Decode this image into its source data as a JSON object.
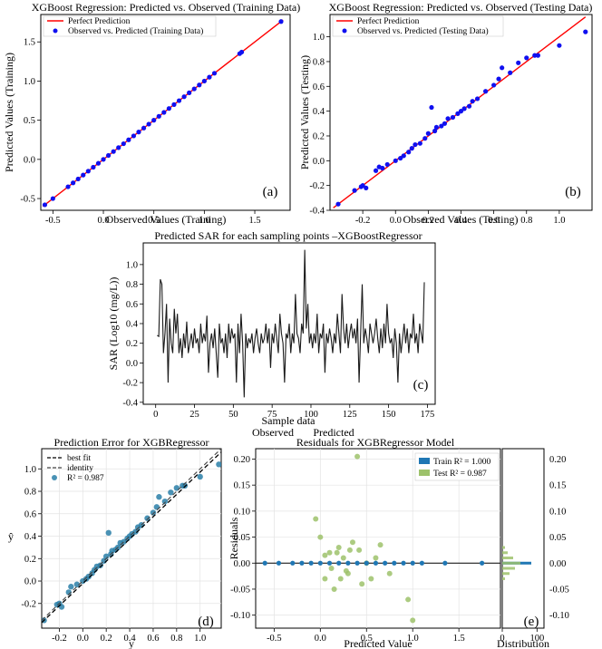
{
  "chart_data": [
    {
      "panel": "(a)",
      "type": "scatter",
      "title": "XGBoost Regression: Predicted vs. Observed (Training Data)",
      "xlabel": "Observed Values (Training)",
      "ylabel": "Predicted Values (Training)",
      "xlim": [
        -0.62,
        1.85
      ],
      "ylim": [
        -0.65,
        1.85
      ],
      "xticks": [
        "-0.5",
        "0.0",
        "0.5",
        "1.0",
        "1.5"
      ],
      "xtick_values": [
        -0.5,
        0.0,
        0.5,
        1.0,
        1.5
      ],
      "yticks": [
        "-0.5",
        "0.0",
        "0.5",
        "1.0",
        "1.5"
      ],
      "ytick_values": [
        -0.5,
        0.0,
        0.5,
        1.0,
        1.5
      ],
      "legend": [
        "Perfect Prediction",
        "Observed vs. Predicted (Training Data)"
      ],
      "legend_position": "upper-left",
      "colors": {
        "line": "#ff0000",
        "points": "#1010f0"
      },
      "reference_line": [
        [
          -0.6,
          -0.6
        ],
        [
          1.78,
          1.78
        ]
      ],
      "points": [
        [
          -0.58,
          -0.58
        ],
        [
          -0.5,
          -0.5
        ],
        [
          -0.35,
          -0.35
        ],
        [
          -0.3,
          -0.3
        ],
        [
          -0.25,
          -0.25
        ],
        [
          -0.2,
          -0.2
        ],
        [
          -0.15,
          -0.15
        ],
        [
          -0.1,
          -0.1
        ],
        [
          -0.05,
          -0.05
        ],
        [
          0.0,
          0.0
        ],
        [
          0.05,
          0.05
        ],
        [
          0.1,
          0.1
        ],
        [
          0.15,
          0.15
        ],
        [
          0.2,
          0.2
        ],
        [
          0.25,
          0.25
        ],
        [
          0.3,
          0.3
        ],
        [
          0.35,
          0.35
        ],
        [
          0.4,
          0.4
        ],
        [
          0.45,
          0.45
        ],
        [
          0.5,
          0.5
        ],
        [
          0.55,
          0.55
        ],
        [
          0.6,
          0.6
        ],
        [
          0.65,
          0.65
        ],
        [
          0.7,
          0.7
        ],
        [
          0.75,
          0.75
        ],
        [
          0.8,
          0.8
        ],
        [
          0.85,
          0.85
        ],
        [
          0.9,
          0.9
        ],
        [
          0.95,
          0.95
        ],
        [
          1.0,
          1.0
        ],
        [
          1.05,
          1.05
        ],
        [
          1.1,
          1.1
        ],
        [
          1.35,
          1.35
        ],
        [
          1.37,
          1.37
        ],
        [
          1.76,
          1.76
        ]
      ]
    },
    {
      "panel": "(b)",
      "type": "scatter",
      "title": "XGBoost Regression: Predicted vs. Observed (Testing Data)",
      "xlabel": "Observed Values (Testing)",
      "ylabel": "Predicted Values (Testing)",
      "xlim": [
        -0.4,
        1.2
      ],
      "ylim": [
        -0.4,
        1.18
      ],
      "xticks": [
        "-0.2",
        "0.0",
        "0.2",
        "0.4",
        "0.6",
        "0.8",
        "1.0"
      ],
      "xtick_values": [
        -0.2,
        0.0,
        0.2,
        0.4,
        0.6,
        0.8,
        1.0
      ],
      "extra_xticks": [
        "0.4",
        "0.2",
        "0.0",
        "0.2",
        "0.4",
        "0.6",
        "0.8",
        "1.0",
        "1.2"
      ],
      "yticks": [
        "-0.4",
        "-0.2",
        "0.0",
        "0.2",
        "0.4",
        "0.6",
        "0.8",
        "1.0"
      ],
      "ytick_values": [
        -0.4,
        -0.2,
        0.0,
        0.2,
        0.4,
        0.6,
        0.8,
        1.0
      ],
      "legend": [
        "Perfect Prediction",
        "Observed vs. Predicted (Testing Data)"
      ],
      "legend_position": "upper-left",
      "colors": {
        "line": "#ff0000",
        "points": "#1010f0"
      },
      "reference_line": [
        [
          -0.38,
          -0.38
        ],
        [
          1.16,
          1.16
        ]
      ],
      "points": [
        [
          -0.35,
          -0.35
        ],
        [
          -0.25,
          -0.24
        ],
        [
          -0.21,
          -0.21
        ],
        [
          -0.2,
          -0.2
        ],
        [
          -0.18,
          -0.22
        ],
        [
          -0.12,
          -0.08
        ],
        [
          -0.1,
          -0.05
        ],
        [
          -0.08,
          -0.06
        ],
        [
          -0.05,
          -0.03
        ],
        [
          0.0,
          0.0
        ],
        [
          0.03,
          0.02
        ],
        [
          0.05,
          0.04
        ],
        [
          0.08,
          0.07
        ],
        [
          0.1,
          0.1
        ],
        [
          0.12,
          0.13
        ],
        [
          0.15,
          0.14
        ],
        [
          0.18,
          0.18
        ],
        [
          0.2,
          0.22
        ],
        [
          0.22,
          0.43
        ],
        [
          0.24,
          0.24
        ],
        [
          0.25,
          0.27
        ],
        [
          0.28,
          0.28
        ],
        [
          0.3,
          0.3
        ],
        [
          0.32,
          0.34
        ],
        [
          0.35,
          0.35
        ],
        [
          0.38,
          0.38
        ],
        [
          0.4,
          0.4
        ],
        [
          0.42,
          0.42
        ],
        [
          0.45,
          0.44
        ],
        [
          0.47,
          0.48
        ],
        [
          0.5,
          0.5
        ],
        [
          0.55,
          0.56
        ],
        [
          0.6,
          0.61
        ],
        [
          0.63,
          0.66
        ],
        [
          0.65,
          0.75
        ],
        [
          0.7,
          0.71
        ],
        [
          0.75,
          0.79
        ],
        [
          0.8,
          0.83
        ],
        [
          0.85,
          0.85
        ],
        [
          0.87,
          0.85
        ],
        [
          1.0,
          0.93
        ],
        [
          1.16,
          1.04
        ]
      ]
    },
    {
      "panel": "(c)",
      "type": "line",
      "title": "Predicted SAR for each sampling points –XGBoostRegressor",
      "xlabel": "Sample data",
      "ylabel": "SAR (Log10 (mg/L))",
      "xlim": [
        -8,
        180
      ],
      "ylim": [
        -0.42,
        1.22
      ],
      "xticks": [
        "0",
        "25",
        "50",
        "75",
        "100",
        "125",
        "150",
        "175"
      ],
      "xtick_values": [
        0,
        25,
        50,
        75,
        100,
        125,
        150,
        175
      ],
      "yticks": [
        "-0.4",
        "-0.2",
        "0.0",
        "0.2",
        "0.4",
        "0.6",
        "0.8",
        "1.0"
      ],
      "ytick_values": [
        -0.4,
        -0.2,
        0.0,
        0.2,
        0.4,
        0.6,
        0.8,
        1.0
      ],
      "colors": {
        "line": "#1a1a1a"
      },
      "values": [
        0.28,
        0.27,
        0.85,
        0.8,
        0.1,
        0.3,
        0.6,
        -0.2,
        0.45,
        0.2,
        0.1,
        0.55,
        0.3,
        0.5,
        0.1,
        0.25,
        0.05,
        0.3,
        0.15,
        0.42,
        0.1,
        0.2,
        0.3,
        0.15,
        0.35,
        0.2,
        0.25,
        0.1,
        0.4,
        0.2,
        0.3,
        0.22,
        0.48,
        -0.1,
        0.2,
        0.3,
        0.15,
        0.35,
        0.1,
        -0.15,
        0.4,
        0.2,
        0.25,
        0.1,
        0.3,
        0.05,
        0.4,
        0.2,
        0.35,
        0.25,
        0.3,
        -0.2,
        0.4,
        0.1,
        0.5,
        0.2,
        -0.35,
        0.3,
        0.15,
        0.25,
        0.2,
        0.3,
        0.1,
        0.25,
        0.35,
        0.2,
        0.1,
        0.3,
        0.2,
        0.25,
        0.4,
        0.2,
        0.35,
        -0.05,
        0.3,
        0.2,
        0.4,
        0.25,
        0.1,
        0.5,
        0.3,
        0.2,
        -0.2,
        0.3,
        0.25,
        0.4,
        0.1,
        0.3,
        0.2,
        0.7,
        0.3,
        0.25,
        0.1,
        0.4,
        0.3,
        1.15,
        0.35,
        0.6,
        0.2,
        0.3,
        0.15,
        0.3,
        0.2,
        0.5,
        0.1,
        0.3,
        0.25,
        0.4,
        -0.1,
        0.3,
        0.2,
        0.35,
        0.25,
        0.1,
        0.3,
        0.2,
        0.5,
        0.3,
        0.1,
        0.7,
        0.35,
        0.2,
        0.4,
        0.15,
        0.3,
        0.4,
        0.25,
        0.35,
        0.2,
        0.45,
        -0.2,
        0.3,
        0.8,
        0.2,
        0.35,
        0.25,
        0.1,
        0.4,
        0.3,
        0.2,
        0.3,
        0.45,
        0.25,
        0.1,
        0.35,
        0.15,
        0.4,
        0.2,
        0.6,
        0.3,
        0.2,
        0.25,
        0.05,
        0.35,
        0.2,
        -0.2,
        0.3,
        0.1,
        0.25,
        0.4,
        0.2,
        0.35,
        0.1,
        0.3,
        0.25,
        0.5,
        0.2,
        0.3,
        0.1,
        0.4,
        0.3,
        0.2,
        0.82
      ]
    },
    {
      "panel": "(d)",
      "type": "scatter",
      "title": "Prediction Error for XGBRegressor",
      "xlabel": "y",
      "ylabel": "ŷ",
      "xlim": [
        -0.35,
        1.18
      ],
      "ylim": [
        -0.42,
        1.18
      ],
      "xticks": [
        "-0.2",
        "0.0",
        "0.2",
        "0.4",
        "0.6",
        "0.8",
        "1.0"
      ],
      "xtick_values": [
        -0.2,
        0.0,
        0.2,
        0.4,
        0.6,
        0.8,
        1.0
      ],
      "yticks": [
        "-0.2",
        "0.0",
        "0.2",
        "0.4",
        "0.6",
        "0.8",
        "1.0"
      ],
      "ytick_values": [
        -0.2,
        0.0,
        0.2,
        0.4,
        0.6,
        0.8,
        1.0
      ],
      "legend": [
        "best fit",
        "identity",
        "R² = 0.987"
      ],
      "legend_position": "upper-left",
      "colors": {
        "points": "#2a7fa8",
        "best_fit": "#000000",
        "identity": "#444444"
      },
      "best_fit": [
        [
          -0.35,
          -0.37
        ],
        [
          1.18,
          1.15
        ]
      ],
      "identity": [
        [
          -0.35,
          -0.35
        ],
        [
          1.18,
          1.18
        ]
      ],
      "points": [
        [
          -0.33,
          -0.35
        ],
        [
          -0.22,
          -0.21
        ],
        [
          -0.2,
          -0.2
        ],
        [
          -0.18,
          -0.23
        ],
        [
          -0.12,
          -0.1
        ],
        [
          -0.1,
          -0.05
        ],
        [
          -0.05,
          -0.03
        ],
        [
          0.0,
          0.0
        ],
        [
          0.03,
          0.02
        ],
        [
          0.05,
          0.04
        ],
        [
          0.08,
          0.07
        ],
        [
          0.1,
          0.1
        ],
        [
          0.12,
          0.13
        ],
        [
          0.15,
          0.14
        ],
        [
          0.18,
          0.18
        ],
        [
          0.2,
          0.22
        ],
        [
          0.22,
          0.43
        ],
        [
          0.24,
          0.24
        ],
        [
          0.25,
          0.27
        ],
        [
          0.28,
          0.28
        ],
        [
          0.3,
          0.3
        ],
        [
          0.32,
          0.34
        ],
        [
          0.35,
          0.35
        ],
        [
          0.38,
          0.38
        ],
        [
          0.4,
          0.4
        ],
        [
          0.42,
          0.42
        ],
        [
          0.45,
          0.44
        ],
        [
          0.47,
          0.48
        ],
        [
          0.5,
          0.5
        ],
        [
          0.55,
          0.56
        ],
        [
          0.6,
          0.61
        ],
        [
          0.63,
          0.66
        ],
        [
          0.65,
          0.75
        ],
        [
          0.7,
          0.71
        ],
        [
          0.75,
          0.79
        ],
        [
          0.8,
          0.83
        ],
        [
          0.85,
          0.85
        ],
        [
          0.87,
          0.85
        ],
        [
          1.0,
          0.93
        ],
        [
          1.16,
          1.04
        ]
      ]
    },
    {
      "panel": "(e)",
      "type": "scatter",
      "title": "Residuals for XGBRegressor Model",
      "header_labels": [
        "Observed",
        "Predicted"
      ],
      "xlabel": "Predicted Value",
      "ylabel": "Residuals",
      "xlim": [
        -0.7,
        1.95
      ],
      "ylim": [
        -0.125,
        0.22
      ],
      "xticks": [
        "-0.5",
        "0.0",
        "0.5",
        "1.0",
        "1.5"
      ],
      "xtick_values": [
        -0.5,
        0.0,
        0.5,
        1.0,
        1.5
      ],
      "yticks": [
        "-0.10",
        "-0.05",
        "0.00",
        "0.05",
        "0.10",
        "0.15",
        "0.20"
      ],
      "ytick_values": [
        -0.1,
        -0.05,
        0.0,
        0.05,
        0.1,
        0.15,
        0.2
      ],
      "legend": [
        "Train R² = 1.000",
        "Test R² = 0.987"
      ],
      "legend_position": "upper-right",
      "colors": {
        "train": "#1f77b4",
        "test": "#9dc26b",
        "zero_line": "#000000"
      },
      "train_points": [
        [
          -0.6,
          0.0
        ],
        [
          -0.45,
          0.0
        ],
        [
          -0.3,
          0.0
        ],
        [
          -0.2,
          0.0
        ],
        [
          -0.1,
          0.0
        ],
        [
          0.0,
          0.0
        ],
        [
          0.1,
          0.0
        ],
        [
          0.2,
          0.0
        ],
        [
          0.3,
          0.0
        ],
        [
          0.4,
          0.0
        ],
        [
          0.5,
          0.0
        ],
        [
          0.6,
          0.0
        ],
        [
          0.7,
          0.0
        ],
        [
          0.8,
          0.0
        ],
        [
          0.9,
          0.0
        ],
        [
          1.0,
          0.0
        ],
        [
          1.1,
          0.0
        ],
        [
          1.35,
          0.0
        ],
        [
          1.75,
          0.0
        ]
      ],
      "test_points": [
        [
          -0.05,
          0.085
        ],
        [
          0.0,
          0.05
        ],
        [
          0.05,
          -0.03
        ],
        [
          0.1,
          0.02
        ],
        [
          0.15,
          -0.05
        ],
        [
          0.2,
          0.03
        ],
        [
          0.22,
          -0.03
        ],
        [
          0.25,
          0.01
        ],
        [
          0.3,
          -0.02
        ],
        [
          0.35,
          0.04
        ],
        [
          0.4,
          0.205
        ],
        [
          0.42,
          0.025
        ],
        [
          0.45,
          -0.04
        ],
        [
          0.5,
          0.0
        ],
        [
          0.55,
          -0.03
        ],
        [
          0.6,
          0.01
        ],
        [
          0.65,
          0.035
        ],
        [
          0.75,
          -0.02
        ],
        [
          0.95,
          -0.07
        ],
        [
          1.0,
          -0.11
        ],
        [
          0.05,
          0.015
        ],
        [
          0.12,
          -0.01
        ],
        [
          0.18,
          0.02
        ],
        [
          0.28,
          -0.015
        ],
        [
          0.32,
          0.025
        ]
      ],
      "side_panel": {
        "label": "Distribution",
        "xticks": [
          "0",
          "100"
        ],
        "xtick_values": [
          0,
          100
        ]
      }
    }
  ],
  "panel_labels": [
    "(a)",
    "(b)",
    "(c)",
    "(d)",
    "(e)"
  ]
}
